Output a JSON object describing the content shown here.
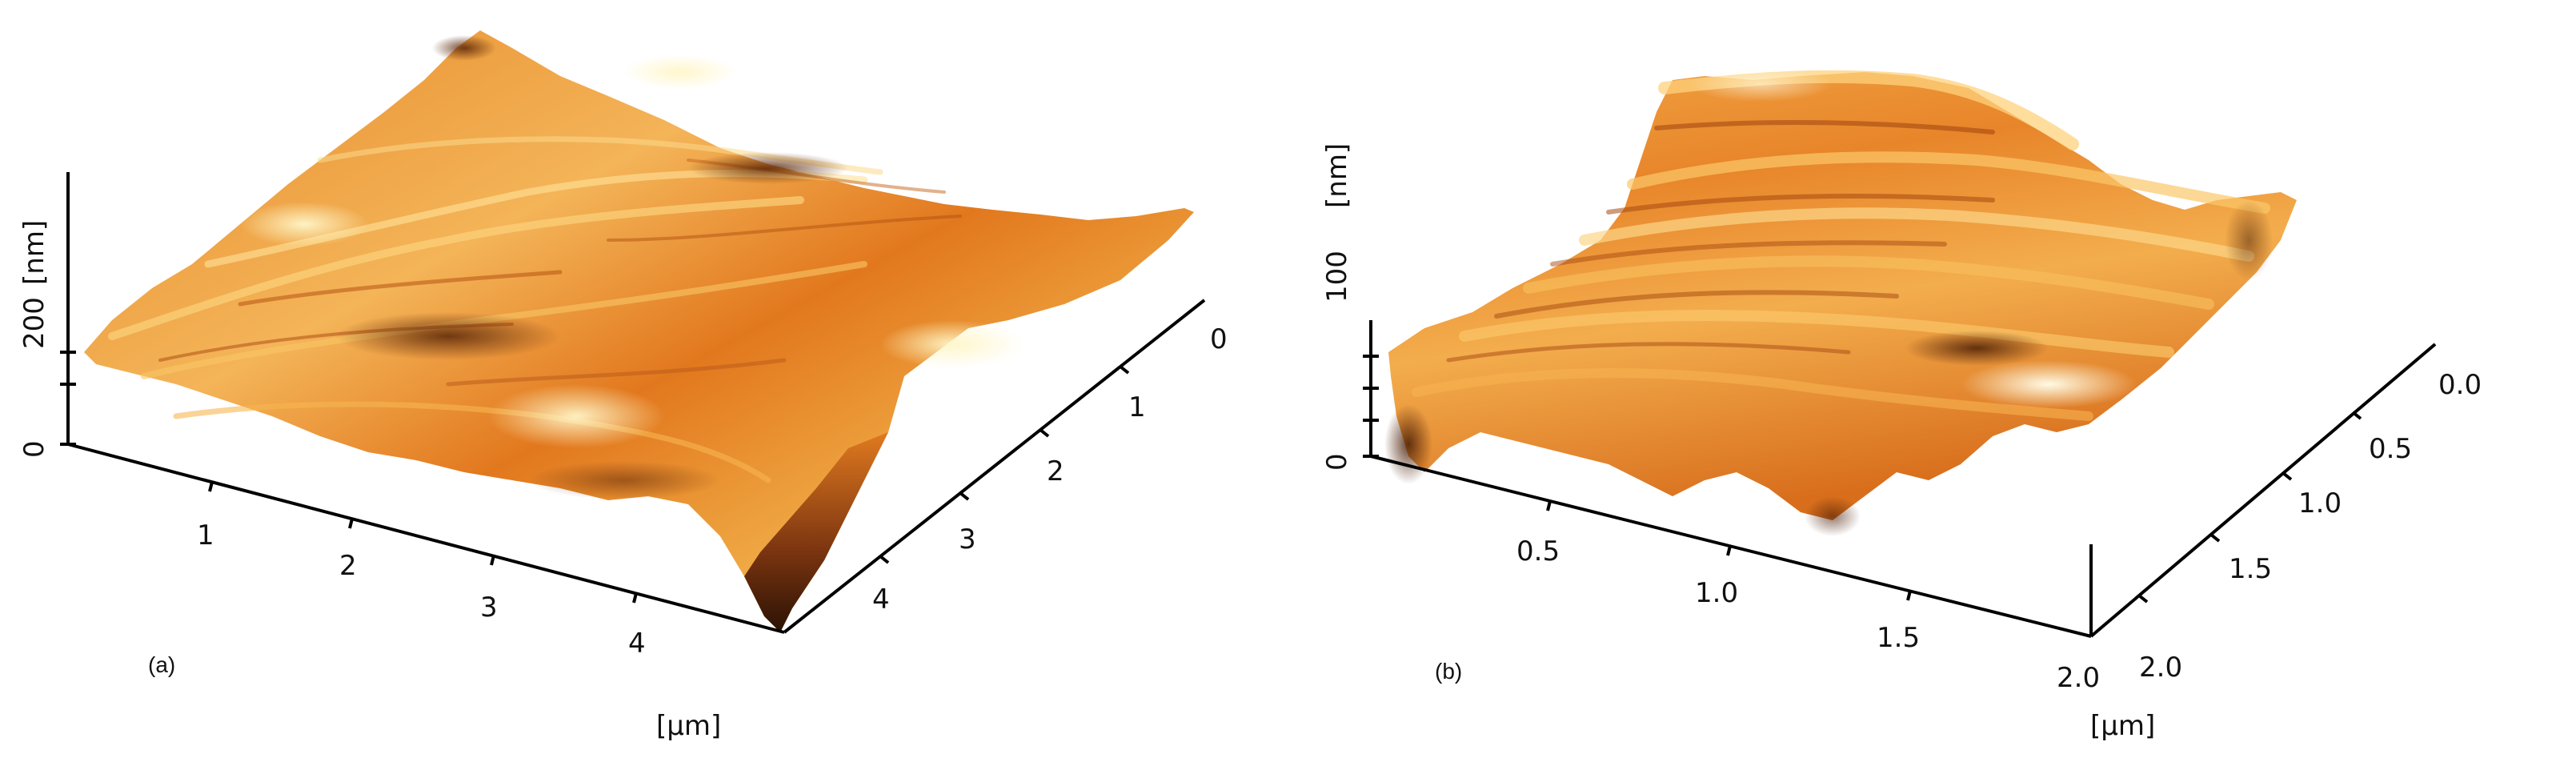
{
  "figure": {
    "panels": [
      {
        "id": "a",
        "label": "(a)",
        "z_unit": "[nm]",
        "z_ticks": [
          "0",
          "200"
        ],
        "x_unit": "[µm]",
        "x_ticks": [
          "1",
          "2",
          "3",
          "4"
        ],
        "y_ticks": [
          "0",
          "1",
          "2",
          "3",
          "4"
        ]
      },
      {
        "id": "b",
        "label": "(b)",
        "z_unit": "[nm]",
        "z_ticks": [
          "0",
          "100"
        ],
        "x_unit": "[µm]",
        "x_ticks": [
          "0.5",
          "1.0",
          "1.5",
          "2.0"
        ],
        "y_ticks": [
          "0.0",
          "0.5",
          "1.0",
          "1.5",
          "2.0"
        ]
      }
    ],
    "colors": {
      "surface_light": "#f7e9a4",
      "surface_mid": "#f2a23b",
      "surface_orange": "#e47a1c",
      "surface_dark": "#3a1a08"
    }
  }
}
